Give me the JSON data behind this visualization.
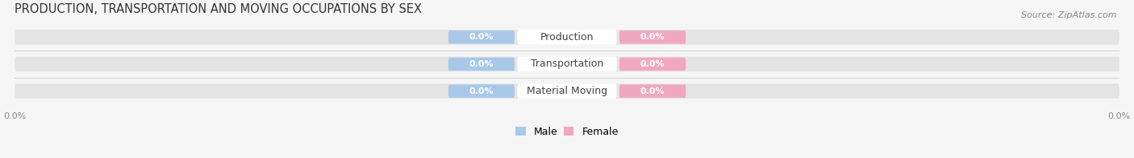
{
  "title": "PRODUCTION, TRANSPORTATION AND MOVING OCCUPATIONS BY SEX",
  "source_text": "Source: ZipAtlas.com",
  "categories": [
    "Production",
    "Transportation",
    "Material Moving"
  ],
  "male_values": [
    0.0,
    0.0,
    0.0
  ],
  "female_values": [
    0.0,
    0.0,
    0.0
  ],
  "male_color": "#a8c8e8",
  "female_color": "#f0a8c0",
  "bar_bg_color": "#e4e4e4",
  "center_label_color": "#ffffff",
  "title_fontsize": 10.5,
  "source_fontsize": 8,
  "label_fontsize": 8,
  "category_fontsize": 9,
  "legend_fontsize": 9,
  "background_color": "#f5f5f5",
  "value_label_color": "#ffffff",
  "category_label_color": "#444444",
  "tick_label_color": "#888888"
}
